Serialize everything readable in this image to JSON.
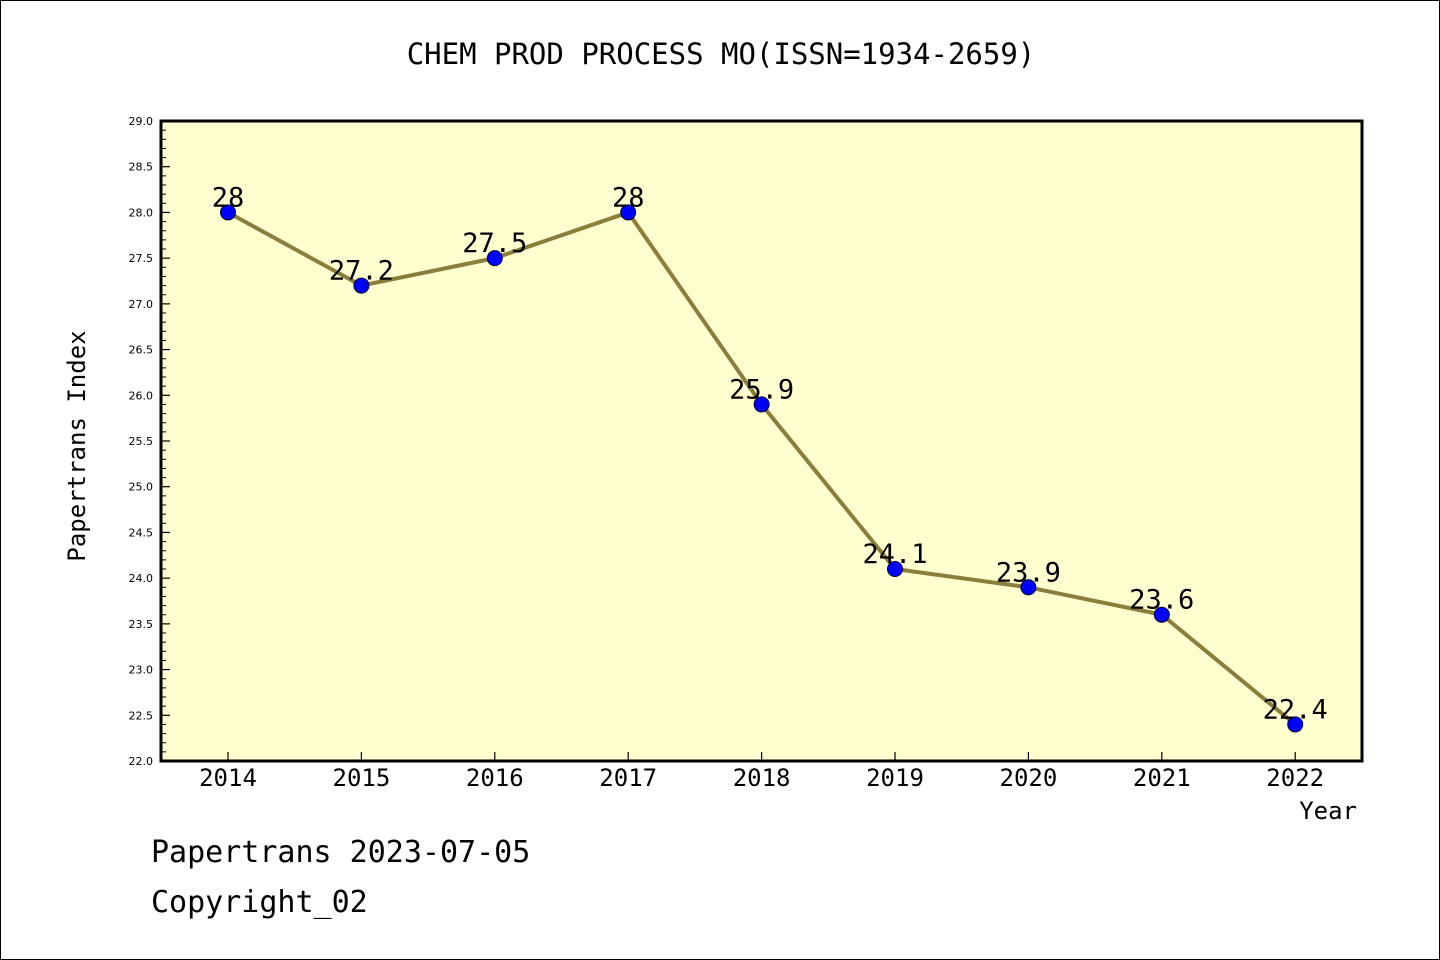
{
  "chart_data": {
    "type": "line",
    "title": "CHEM PROD PROCESS MO(ISSN=1934-2659)",
    "xlabel": "Year",
    "ylabel": "Papertrans Index",
    "categories": [
      "2014",
      "2015",
      "2016",
      "2017",
      "2018",
      "2019",
      "2020",
      "2021",
      "2022"
    ],
    "series": [
      {
        "values": [
          28,
          27.2,
          27.5,
          28,
          25.9,
          24.1,
          23.9,
          23.6,
          22.4
        ],
        "data_labels": [
          "28",
          "27.2",
          "27.5",
          "28",
          "25.9",
          "24.1",
          "23.9",
          "23.6",
          "22.4"
        ],
        "line_color": "#8b7d3a",
        "marker_color": "#0000ff"
      }
    ],
    "ylim": [
      22.0,
      29.0
    ],
    "yticks": [
      "22.0",
      "22.5",
      "23.0",
      "23.5",
      "24.0",
      "24.5",
      "25.0",
      "25.5",
      "26.0",
      "26.5",
      "27.0",
      "27.5",
      "28.0",
      "28.5",
      "29.0"
    ],
    "grid": false,
    "plot_background": "#ffffd0"
  },
  "footer": {
    "line1": "Papertrans 2023-07-05",
    "line2": "Copyright_02"
  }
}
